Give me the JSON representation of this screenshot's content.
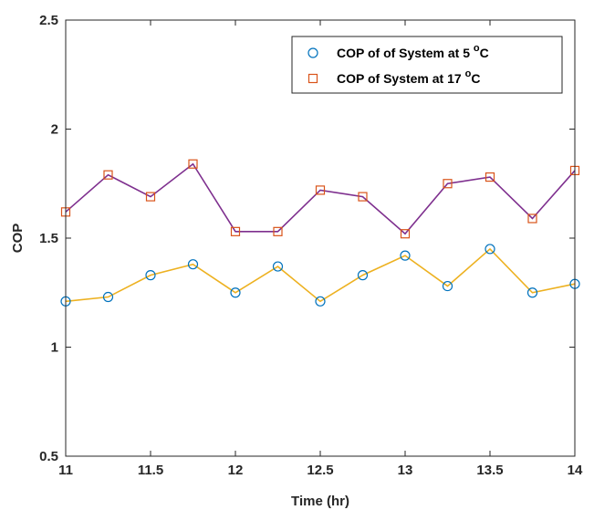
{
  "chart_data": {
    "type": "line",
    "title": "",
    "xlabel": "Time (hr)",
    "ylabel": "COP",
    "xlim": [
      11,
      14
    ],
    "ylim": [
      0.5,
      2.5
    ],
    "x_ticks": [
      "11",
      "11.5",
      "12",
      "12.5",
      "13",
      "13.5",
      "14"
    ],
    "y_ticks": [
      "0.5",
      "1",
      "1.5",
      "2",
      "2.5"
    ],
    "grid": false,
    "legend_position": "top-right",
    "x": [
      11,
      11.25,
      11.5,
      11.75,
      12,
      12.25,
      12.5,
      12.75,
      13,
      13.25,
      13.5,
      13.75,
      14
    ],
    "series": [
      {
        "name": "COP of of System at 5 °C",
        "legend_main": "COP of of System at 5 ",
        "legend_sup": "o",
        "legend_end": "C",
        "marker": "circle",
        "marker_color": "#0072BD",
        "line_color": "#EDB120",
        "values": [
          1.21,
          1.23,
          1.33,
          1.38,
          1.25,
          1.37,
          1.21,
          1.33,
          1.42,
          1.28,
          1.45,
          1.25,
          1.29
        ]
      },
      {
        "name": "COP of System at 17 °C",
        "legend_main": "COP of System at 17 ",
        "legend_sup": "o",
        "legend_end": "C",
        "marker": "square",
        "marker_color": "#D95319",
        "line_color": "#7E2F8E",
        "values": [
          1.62,
          1.79,
          1.69,
          1.84,
          1.53,
          1.53,
          1.72,
          1.69,
          1.52,
          1.75,
          1.78,
          1.59,
          1.81
        ]
      }
    ]
  }
}
